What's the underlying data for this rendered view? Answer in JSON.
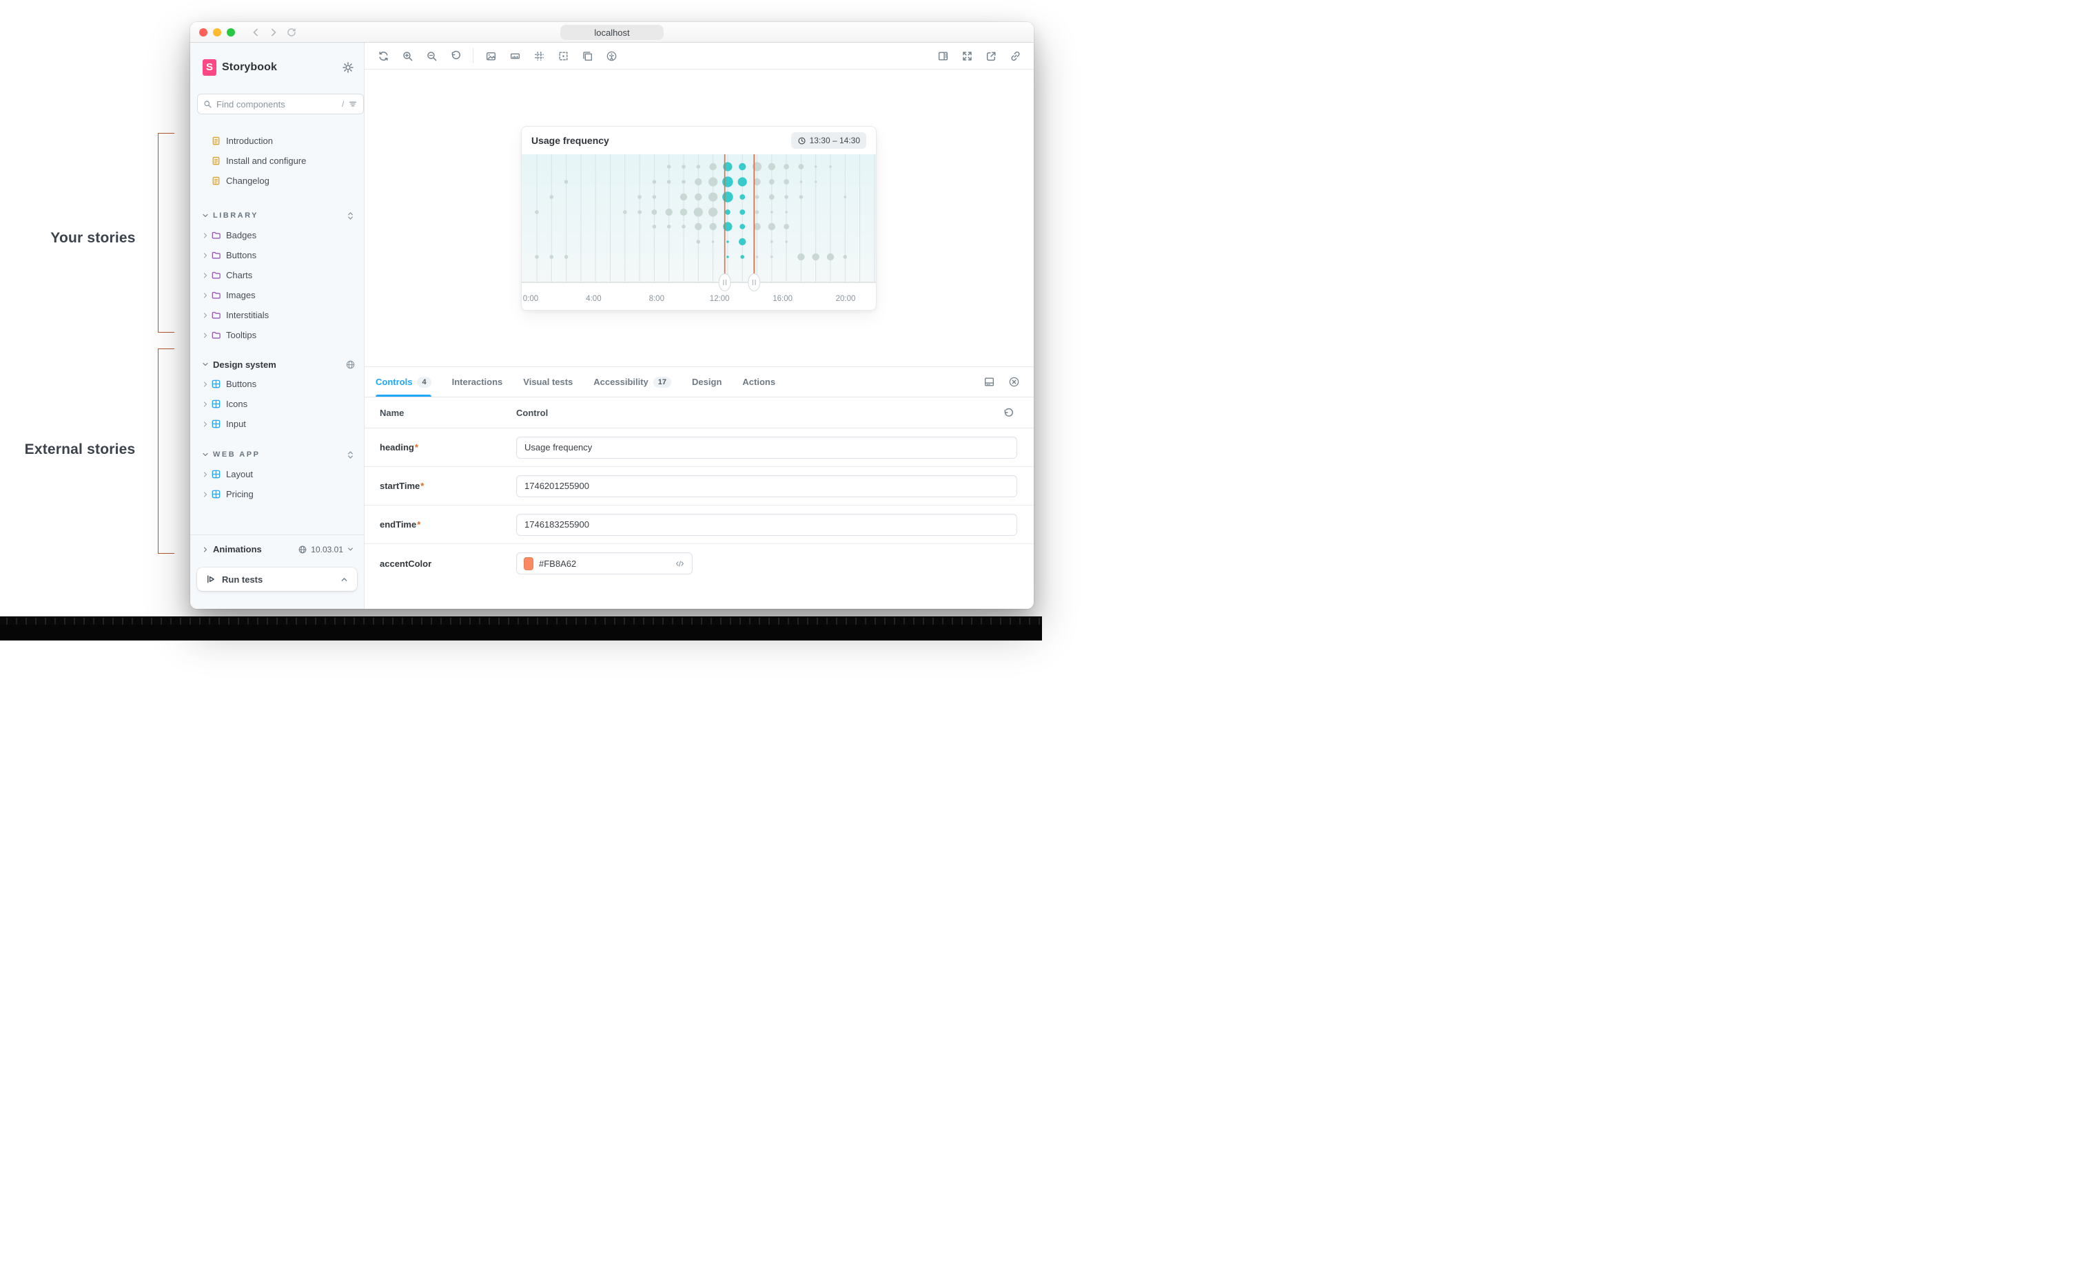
{
  "annotations": {
    "your_stories": "Your stories",
    "external_stories": "External stories",
    "bracket_color": "#B5562B"
  },
  "browser": {
    "url": "localhost",
    "traffic_lights": [
      "#FF5F57",
      "#FEBC2E",
      "#28C840"
    ],
    "nav_icons": [
      "back-arrow",
      "forward-arrow",
      "reload"
    ]
  },
  "sidebar": {
    "brand": "Storybook",
    "gear_icon": "gear",
    "search": {
      "placeholder": "Find components",
      "shortcut": "/",
      "icons": [
        "search",
        "filter",
        "plus"
      ]
    },
    "docs": [
      {
        "label": "Introduction"
      },
      {
        "label": "Install and configure"
      },
      {
        "label": "Changelog"
      }
    ],
    "library": {
      "label": "LIBRARY",
      "items": [
        {
          "label": "Badges"
        },
        {
          "label": "Buttons"
        },
        {
          "label": "Charts"
        },
        {
          "label": "Images"
        },
        {
          "label": "Interstitials"
        },
        {
          "label": "Tooltips"
        }
      ]
    },
    "design_system": {
      "label": "Design system",
      "items": [
        {
          "label": "Buttons"
        },
        {
          "label": "Icons"
        },
        {
          "label": "Input"
        }
      ]
    },
    "web_app": {
      "label": "WEB APP",
      "items": [
        {
          "label": "Layout"
        },
        {
          "label": "Pricing"
        }
      ]
    },
    "footer": {
      "label": "Animations",
      "version": "10.03.01"
    },
    "run_tests_label": "Run tests"
  },
  "toolbar": {
    "left_icons": [
      "remount",
      "zoom-in",
      "zoom-out",
      "zoom-reset",
      "background",
      "measure",
      "grid",
      "outline",
      "viewports",
      "accessibility"
    ],
    "right_icons": [
      "panel-right",
      "fullscreen",
      "open-external",
      "copy-link"
    ]
  },
  "story": {
    "title": "Usage frequency",
    "time_badge": "13:30 – 14:30"
  },
  "chart_data": {
    "type": "bubble-timeline",
    "title": "Usage frequency",
    "time_window_label": "13:30 – 14:30",
    "x_axis": {
      "labels": [
        "0:00",
        "4:00",
        "8:00",
        "12:00",
        "16:00",
        "20:00"
      ],
      "hours": 24,
      "gridlines": "hourly"
    },
    "row_count": 7,
    "selection": {
      "from_hour": 12.8,
      "to_hour": 14.8,
      "color": "#ED6742"
    },
    "highlight_hours": [
      13,
      14
    ],
    "colors": {
      "dot": "#C9D8D4",
      "dot_active": "#38CBCB",
      "plot_top": "#E6F5F7",
      "plot_bottom": "#F4F8F8",
      "gridline": "#D9E3E4",
      "axis_text": "#8A949C"
    },
    "size_scale": [
      1.8,
      2.8,
      3.9,
      5.2,
      6.6,
      7.8
    ],
    "dots": [
      [
        1,
        9,
        2
      ],
      [
        1,
        10,
        2
      ],
      [
        1,
        11,
        2
      ],
      [
        1,
        12,
        4
      ],
      [
        1,
        13,
        5
      ],
      [
        1,
        14,
        4
      ],
      [
        1,
        15,
        5
      ],
      [
        1,
        16,
        4
      ],
      [
        1,
        17,
        3
      ],
      [
        1,
        18,
        3
      ],
      [
        1,
        19,
        1
      ],
      [
        1,
        20,
        1
      ],
      [
        2,
        2,
        2
      ],
      [
        2,
        8,
        2
      ],
      [
        2,
        9,
        2
      ],
      [
        2,
        10,
        2
      ],
      [
        2,
        11,
        4
      ],
      [
        2,
        12,
        5
      ],
      [
        2,
        13,
        6
      ],
      [
        2,
        14,
        5
      ],
      [
        2,
        15,
        4
      ],
      [
        2,
        16,
        3
      ],
      [
        2,
        17,
        3
      ],
      [
        2,
        18,
        1
      ],
      [
        2,
        19,
        1
      ],
      [
        3,
        1,
        2
      ],
      [
        3,
        7,
        2
      ],
      [
        3,
        8,
        2
      ],
      [
        3,
        10,
        4
      ],
      [
        3,
        11,
        4
      ],
      [
        3,
        12,
        5
      ],
      [
        3,
        13,
        6
      ],
      [
        3,
        14,
        3
      ],
      [
        3,
        15,
        2
      ],
      [
        3,
        16,
        3
      ],
      [
        3,
        17,
        2
      ],
      [
        3,
        18,
        2
      ],
      [
        3,
        21,
        1
      ],
      [
        4,
        0,
        2
      ],
      [
        4,
        6,
        2
      ],
      [
        4,
        7,
        2
      ],
      [
        4,
        8,
        3
      ],
      [
        4,
        9,
        4
      ],
      [
        4,
        10,
        4
      ],
      [
        4,
        11,
        5
      ],
      [
        4,
        12,
        5
      ],
      [
        4,
        13,
        3
      ],
      [
        4,
        14,
        3
      ],
      [
        4,
        15,
        2
      ],
      [
        4,
        16,
        1
      ],
      [
        4,
        17,
        1
      ],
      [
        5,
        8,
        2
      ],
      [
        5,
        9,
        2
      ],
      [
        5,
        10,
        2
      ],
      [
        5,
        11,
        4
      ],
      [
        5,
        12,
        4
      ],
      [
        5,
        13,
        5
      ],
      [
        5,
        14,
        3
      ],
      [
        5,
        15,
        4
      ],
      [
        5,
        16,
        4
      ],
      [
        5,
        17,
        3
      ],
      [
        6,
        11,
        2
      ],
      [
        6,
        12,
        1
      ],
      [
        6,
        13,
        1
      ],
      [
        6,
        14,
        4
      ],
      [
        6,
        16,
        1
      ],
      [
        6,
        17,
        1
      ],
      [
        7,
        0,
        2
      ],
      [
        7,
        1,
        2
      ],
      [
        7,
        2,
        2
      ],
      [
        7,
        13,
        1
      ],
      [
        7,
        14,
        2
      ],
      [
        7,
        15,
        1
      ],
      [
        7,
        16,
        1
      ],
      [
        7,
        18,
        4
      ],
      [
        7,
        19,
        4
      ],
      [
        7,
        20,
        4
      ],
      [
        7,
        21,
        2
      ]
    ]
  },
  "panel": {
    "tabs": [
      {
        "label": "Controls",
        "badge": "4",
        "active": true
      },
      {
        "label": "Interactions",
        "badge": "",
        "active": false
      },
      {
        "label": "Visual tests",
        "badge": "",
        "active": false
      },
      {
        "label": "Accessibility",
        "badge": "17",
        "active": false
      },
      {
        "label": "Design",
        "badge": "",
        "active": false
      },
      {
        "label": "Actions",
        "badge": "",
        "active": false
      }
    ],
    "columns": {
      "name": "Name",
      "control": "Control"
    },
    "rows": [
      {
        "name": "heading",
        "req_mark": "*",
        "control_type": "text",
        "value": "Usage frequency"
      },
      {
        "name": "startTime",
        "req_mark": "*",
        "control_type": "text",
        "value": "1746201255900"
      },
      {
        "name": "endTime",
        "req_mark": "*",
        "control_type": "text",
        "value": "1746183255900"
      },
      {
        "name": "accentColor",
        "req_mark": "",
        "control_type": "color",
        "value": "#FB8A62"
      }
    ]
  }
}
